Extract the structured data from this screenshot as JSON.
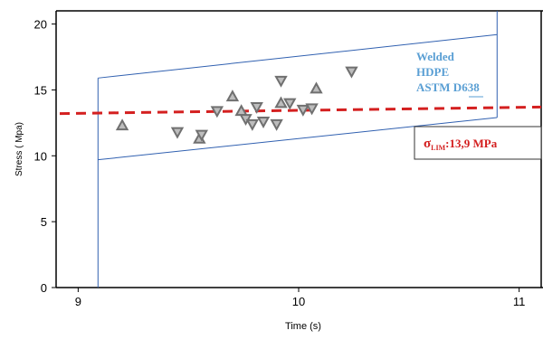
{
  "chart_data": {
    "type": "scatter",
    "xlabel": "Time (s)",
    "ylabel": "Stress ( Mpa)",
    "xlim": [
      8.9,
      11.1
    ],
    "ylim": [
      0,
      21
    ],
    "x_ticks": [
      9,
      10,
      11
    ],
    "y_ticks": [
      0,
      5,
      10,
      15,
      20
    ],
    "grid": false,
    "series": [
      {
        "marker": "up-triangle",
        "points": [
          {
            "x": 9.2,
            "y": 12.3
          },
          {
            "x": 9.55,
            "y": 11.3
          },
          {
            "x": 9.7,
            "y": 14.5
          },
          {
            "x": 9.74,
            "y": 13.4
          },
          {
            "x": 9.92,
            "y": 14.0
          },
          {
            "x": 10.08,
            "y": 15.1
          }
        ]
      },
      {
        "marker": "down-triangle",
        "points": [
          {
            "x": 9.45,
            "y": 11.8
          },
          {
            "x": 9.56,
            "y": 11.6
          },
          {
            "x": 9.63,
            "y": 13.4
          },
          {
            "x": 9.76,
            "y": 12.8
          },
          {
            "x": 9.79,
            "y": 12.4
          },
          {
            "x": 9.81,
            "y": 13.7
          },
          {
            "x": 9.84,
            "y": 12.6
          },
          {
            "x": 9.9,
            "y": 12.4
          },
          {
            "x": 9.92,
            "y": 15.7
          },
          {
            "x": 9.96,
            "y": 14.0
          },
          {
            "x": 10.02,
            "y": 13.5
          },
          {
            "x": 10.06,
            "y": 13.6
          },
          {
            "x": 10.24,
            "y": 16.4
          }
        ]
      }
    ],
    "limit_line": {
      "label_symbol": "σ",
      "label_subscript": "LIM",
      "label_value": ":13,9 MPa",
      "y_start": 13.2,
      "y_end": 13.7,
      "color": "#d42020",
      "style": "dashed"
    },
    "envelope": {
      "color": "#3060b0",
      "x_left": 9.09,
      "x_right": 10.9,
      "upper_left": 15.9,
      "upper_right": 19.2,
      "lower_left": 9.7,
      "lower_right": 12.9
    },
    "annotation": {
      "lines": [
        "Welded",
        "HDPE",
        "ASTM D638"
      ],
      "color": "#5a9fd4"
    },
    "marker_color": "#707070",
    "axis_color": "#000000"
  }
}
